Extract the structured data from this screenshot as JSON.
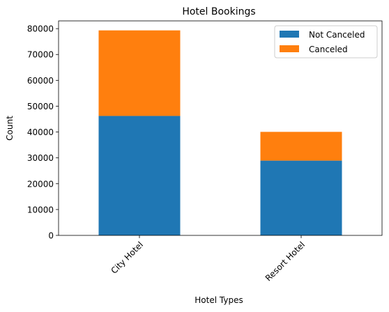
{
  "chart_data": {
    "type": "bar",
    "stacked": true,
    "title": "Hotel Bookings",
    "xlabel": "Hotel Types",
    "ylabel": "Count",
    "categories": [
      "City Hotel",
      "Resort Hotel"
    ],
    "series": [
      {
        "name": "Not Canceled",
        "values": [
          46228,
          28938
        ],
        "color": "#1f77b4"
      },
      {
        "name": "Canceled",
        "values": [
          33102,
          11122
        ],
        "color": "#ff7f0e"
      }
    ],
    "ylim": [
      0,
      83000
    ],
    "yticks": [
      0,
      10000,
      20000,
      30000,
      40000,
      50000,
      60000,
      70000,
      80000
    ],
    "xtick_rotation": 45,
    "grid": false,
    "legend_position": "top-right"
  }
}
